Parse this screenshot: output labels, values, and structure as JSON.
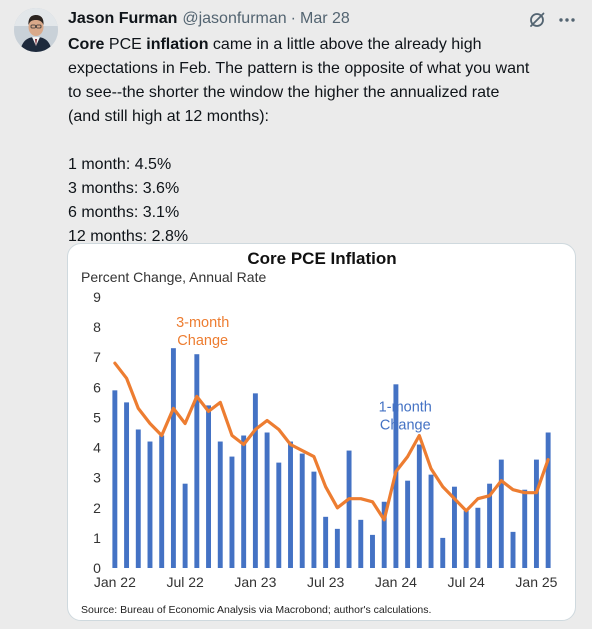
{
  "tweet": {
    "author_name": "Jason Furman",
    "author_handle": "@jasonfurman",
    "separator": "·",
    "date": "Mar 28",
    "grok_icon": "grok-slash-icon",
    "more_icon": "more-dots-icon",
    "text": {
      "line1_bold_a": "Core",
      "line1_plain_a": " PCE ",
      "line1_bold_b": "inflation",
      "line1_plain_b": " came in a little above the already high",
      "line2": "expectations in Feb. The pattern is the opposite of what you want",
      "line3": "to see--the shorter the window the higher the annualized rate",
      "line4": "(and still high at 12 months):",
      "stats": [
        "1 month: 4.5%",
        "3 months: 3.6%",
        "6 months: 3.1%",
        "12 months: 2.8%"
      ]
    }
  },
  "chart_data": {
    "type": "bar",
    "title": "Core PCE Inflation",
    "subtitle": "Percent Change, Annual Rate",
    "source": "Source: Bureau of Economic Analysis via Macrobond; author's calculations.",
    "ylim": [
      0,
      9
    ],
    "yticks": [
      0,
      1,
      2,
      3,
      4,
      5,
      6,
      7,
      8,
      9
    ],
    "grid": false,
    "xtick_labels": [
      {
        "label": "Jan 22",
        "index": 0
      },
      {
        "label": "Jul 22",
        "index": 6
      },
      {
        "label": "Jan 23",
        "index": 12
      },
      {
        "label": "Jul 23",
        "index": 18
      },
      {
        "label": "Jan 24",
        "index": 24
      },
      {
        "label": "Jul 24",
        "index": 30
      },
      {
        "label": "Jan 25",
        "index": 36
      }
    ],
    "categories": [
      "Jan 22",
      "Feb 22",
      "Mar 22",
      "Apr 22",
      "May 22",
      "Jun 22",
      "Jul 22",
      "Aug 22",
      "Sep 22",
      "Oct 22",
      "Nov 22",
      "Dec 22",
      "Jan 23",
      "Feb 23",
      "Mar 23",
      "Apr 23",
      "May 23",
      "Jun 23",
      "Jul 23",
      "Aug 23",
      "Sep 23",
      "Oct 23",
      "Nov 23",
      "Dec 23",
      "Jan 24",
      "Feb 24",
      "Mar 24",
      "Apr 24",
      "May 24",
      "Jun 24",
      "Jul 24",
      "Aug 24",
      "Sep 24",
      "Oct 24",
      "Nov 24",
      "Dec 24",
      "Jan 25",
      "Feb 25"
    ],
    "series": [
      {
        "name": "1-month Change",
        "type": "bar",
        "color": "#4472c4",
        "values": [
          5.9,
          5.5,
          4.6,
          4.2,
          4.4,
          7.3,
          2.8,
          7.1,
          5.4,
          4.2,
          3.7,
          4.4,
          5.8,
          4.5,
          3.5,
          4.2,
          3.8,
          3.2,
          1.7,
          1.3,
          3.9,
          1.6,
          1.1,
          2.2,
          6.1,
          2.9,
          4.1,
          3.1,
          1.0,
          2.7,
          1.9,
          2.0,
          2.8,
          3.6,
          1.2,
          2.6,
          3.6,
          4.5
        ]
      },
      {
        "name": "3-month Change",
        "type": "line",
        "color": "#ed7d31",
        "values": [
          6.8,
          6.3,
          5.3,
          4.8,
          4.4,
          5.3,
          4.8,
          5.7,
          5.2,
          5.5,
          4.4,
          4.1,
          4.6,
          4.9,
          4.6,
          4.1,
          3.9,
          3.7,
          2.7,
          2.0,
          2.3,
          2.3,
          2.2,
          1.6,
          3.2,
          3.7,
          4.4,
          3.3,
          2.7,
          2.3,
          1.9,
          2.3,
          2.4,
          2.9,
          2.6,
          2.5,
          2.5,
          3.6
        ]
      }
    ],
    "annotations": [
      {
        "series": "3-month Change",
        "lines": [
          "3-month",
          "Change"
        ],
        "color": "#ed7d31"
      },
      {
        "series": "1-month Change",
        "lines": [
          "1-month",
          "Change"
        ],
        "color": "#4472c4"
      }
    ]
  }
}
